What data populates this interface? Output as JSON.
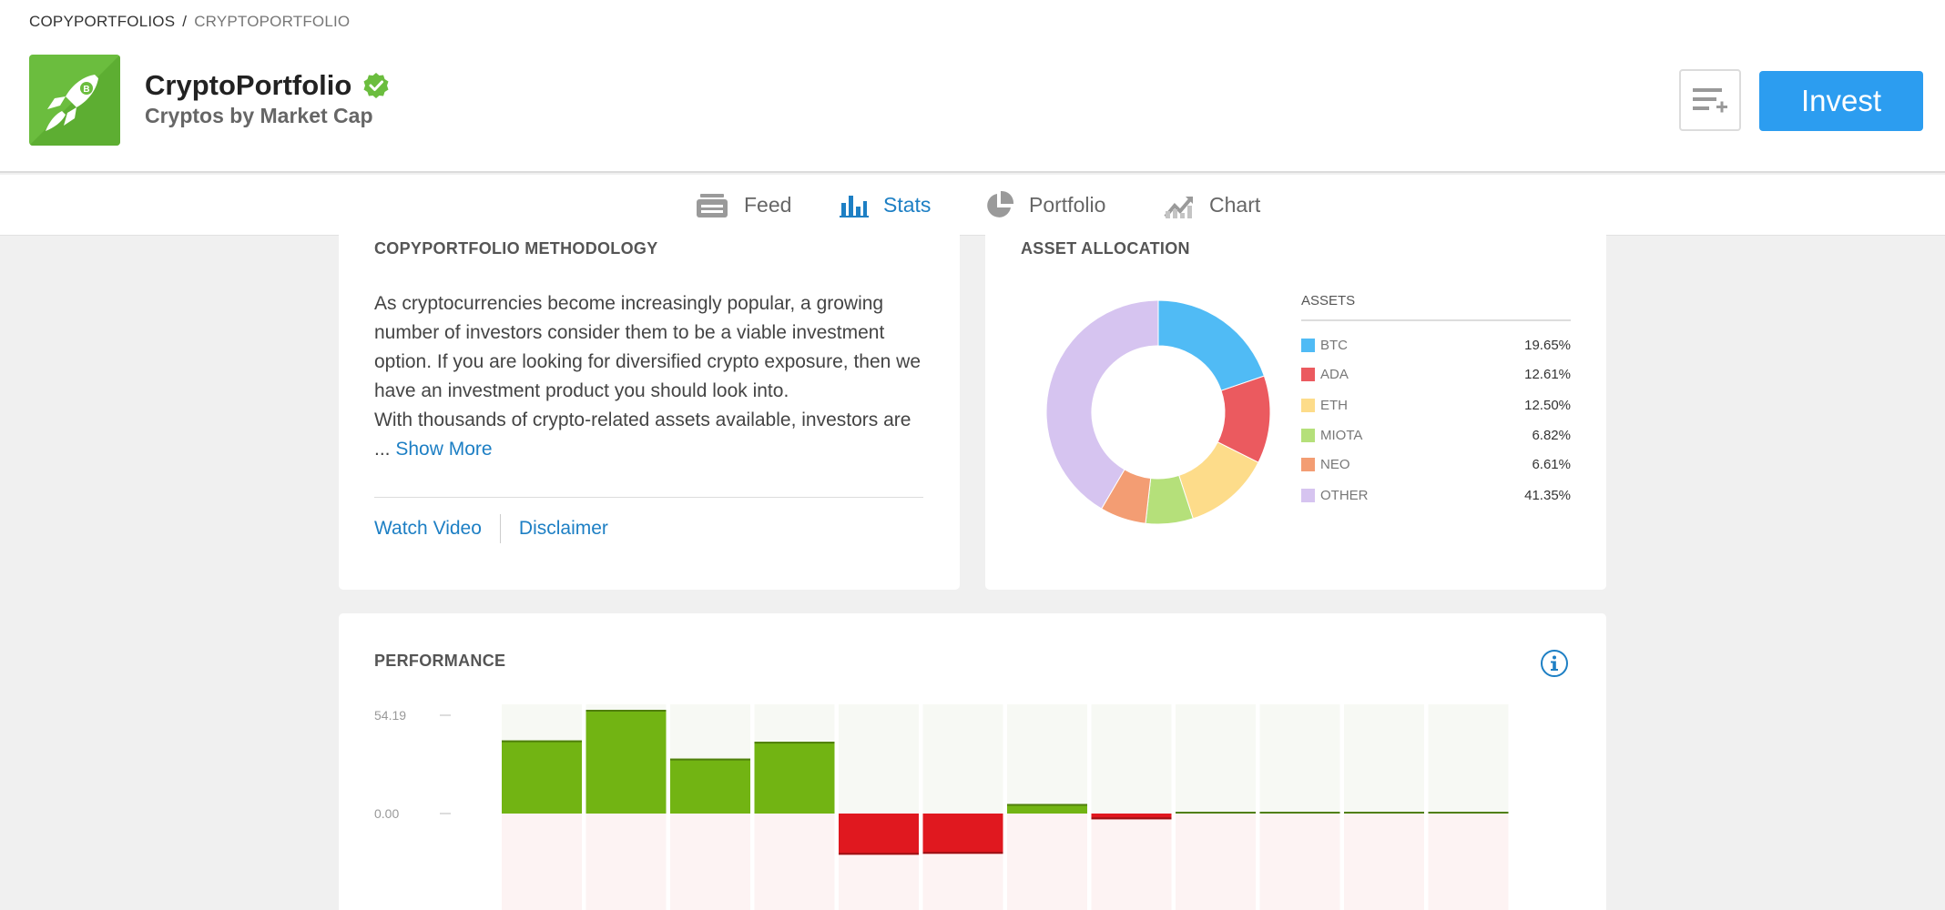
{
  "breadcrumb": {
    "root": "COPYPORTFOLIOS",
    "separator": "/",
    "current": "CRYPTOPORTFOLIO"
  },
  "portfolio": {
    "title": "CryptoPortfolio",
    "subtitle": "Cryptos by Market Cap"
  },
  "header": {
    "invest_label": "Invest",
    "icons": [
      "rocket-logo-icon",
      "verified-icon",
      "watchlist-add-icon"
    ]
  },
  "tabs": [
    {
      "label": "Feed",
      "icon": "feed-icon",
      "active": false
    },
    {
      "label": "Stats",
      "icon": "stats-icon",
      "active": true
    },
    {
      "label": "Portfolio",
      "icon": "portfolio-pie-icon",
      "active": false
    },
    {
      "label": "Chart",
      "icon": "chart-icon",
      "active": false
    }
  ],
  "methodology": {
    "title": "COPYPORTFOLIO METHODOLOGY",
    "text": "As cryptocurrencies become increasingly popular, a growing number of investors consider them to be a viable investment option. If you are looking for diversified crypto exposure, then we have an investment product you should look into.",
    "text2": "With thousands of crypto-related assets available, investors are",
    "ellipsis": "...",
    "show_more": "Show More",
    "watch_video": "Watch Video",
    "disclaimer": "Disclaimer"
  },
  "allocation": {
    "title": "ASSET ALLOCATION",
    "assets_header": "ASSETS",
    "assets": [
      {
        "name": "BTC",
        "pct": "19.65%",
        "value": 19.65,
        "color": "#50bbf5"
      },
      {
        "name": "ADA",
        "pct": "12.61%",
        "value": 12.61,
        "color": "#eb5a5f"
      },
      {
        "name": "ETH",
        "pct": "12.50%",
        "value": 12.5,
        "color": "#fddc8a"
      },
      {
        "name": "MIOTA",
        "pct": "6.82%",
        "value": 6.82,
        "color": "#b5e07a"
      },
      {
        "name": "NEO",
        "pct": "6.61%",
        "value": 6.61,
        "color": "#f39d73"
      },
      {
        "name": "OTHER",
        "pct": "41.35%",
        "value": 41.35,
        "color": "#d6c4f0"
      }
    ]
  },
  "performance": {
    "title": "PERFORMANCE",
    "info_icon": "info-icon"
  },
  "chart_data": {
    "type": "bar",
    "title": "PERFORMANCE",
    "ticks": [
      "54.19",
      "0.00"
    ],
    "ylim_top": 54.19,
    "values": [
      38.2,
      54.19,
      28.7,
      37.5,
      -21.5,
      -21.0,
      5.0,
      -3.0,
      0.5,
      0.5,
      0.5,
      0.5
    ],
    "positive_color": "#72b413",
    "negative_color": "#e0181f",
    "positive_bg": "#f7f9f4",
    "negative_bg": "#fdf3f3",
    "grid": false
  }
}
